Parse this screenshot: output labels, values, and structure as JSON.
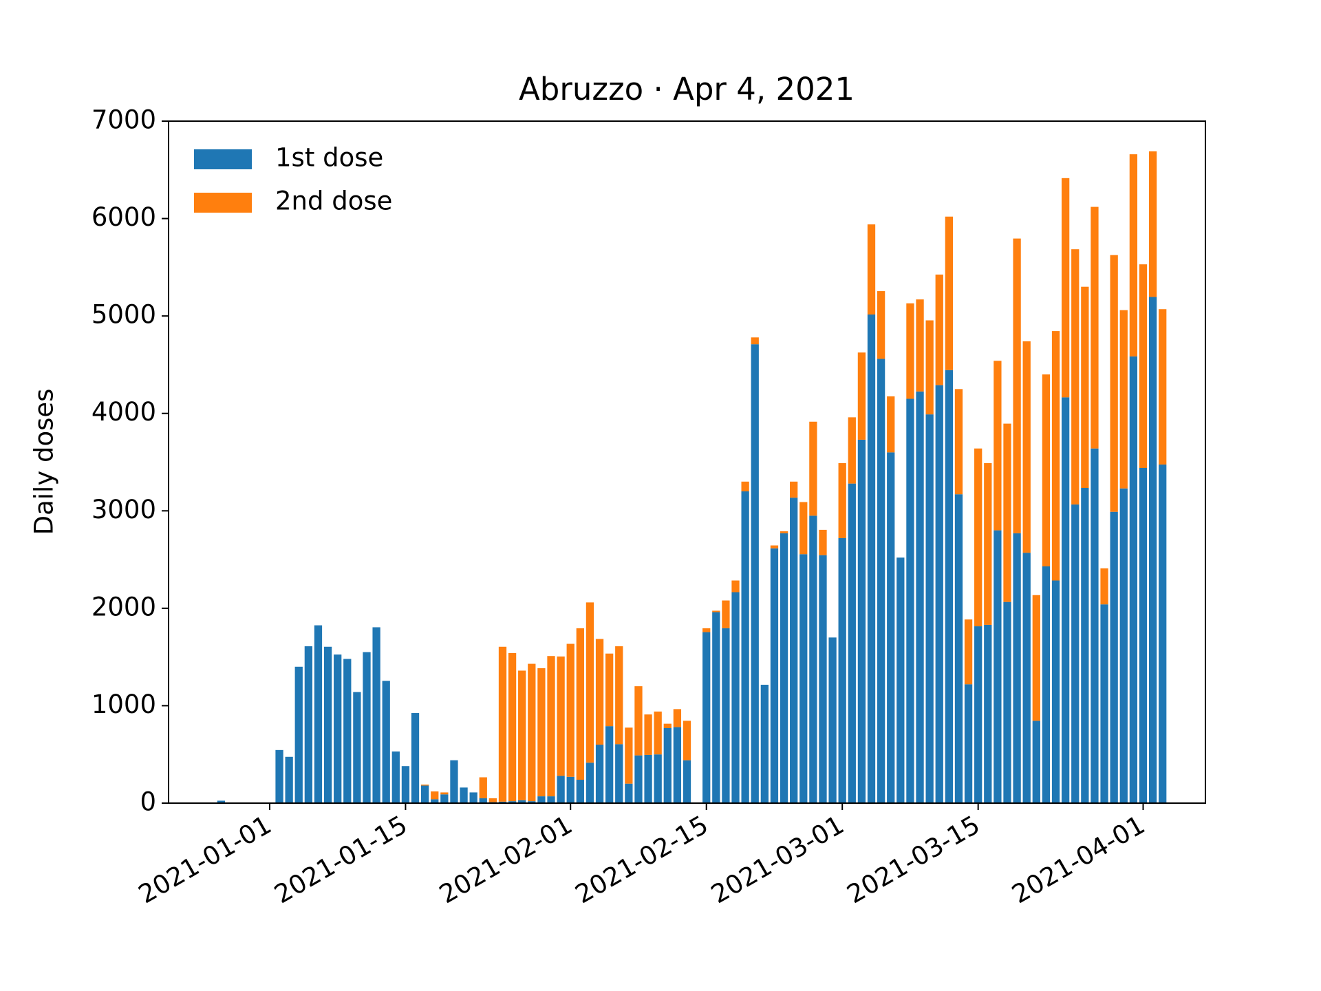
{
  "chart_data": {
    "type": "stacked_bar",
    "title": "Abruzzo · Apr 4, 2021",
    "ylabel": "Daily doses",
    "x": [
      "2020-12-27",
      "2020-12-28",
      "2020-12-29",
      "2020-12-30",
      "2020-12-31",
      "2021-01-01",
      "2021-01-02",
      "2021-01-03",
      "2021-01-04",
      "2021-01-05",
      "2021-01-06",
      "2021-01-07",
      "2021-01-08",
      "2021-01-09",
      "2021-01-10",
      "2021-01-11",
      "2021-01-12",
      "2021-01-13",
      "2021-01-14",
      "2021-01-15",
      "2021-01-16",
      "2021-01-17",
      "2021-01-18",
      "2021-01-19",
      "2021-01-20",
      "2021-01-21",
      "2021-01-22",
      "2021-01-23",
      "2021-01-24",
      "2021-01-25",
      "2021-01-26",
      "2021-01-27",
      "2021-01-28",
      "2021-01-29",
      "2021-01-30",
      "2021-01-31",
      "2021-02-01",
      "2021-02-02",
      "2021-02-03",
      "2021-02-04",
      "2021-02-05",
      "2021-02-06",
      "2021-02-07",
      "2021-02-08",
      "2021-02-09",
      "2021-02-10",
      "2021-02-11",
      "2021-02-12",
      "2021-02-13",
      "2021-02-14",
      "2021-02-15",
      "2021-02-16",
      "2021-02-17",
      "2021-02-18",
      "2021-02-19",
      "2021-02-20",
      "2021-02-21",
      "2021-02-22",
      "2021-02-23",
      "2021-02-24",
      "2021-02-25",
      "2021-02-26",
      "2021-02-27",
      "2021-02-28",
      "2021-03-01",
      "2021-03-02",
      "2021-03-03",
      "2021-03-04",
      "2021-03-05",
      "2021-03-06",
      "2021-03-07",
      "2021-03-08",
      "2021-03-09",
      "2021-03-10",
      "2021-03-11",
      "2021-03-12",
      "2021-03-13",
      "2021-03-14",
      "2021-03-15",
      "2021-03-16",
      "2021-03-17",
      "2021-03-18",
      "2021-03-19",
      "2021-03-20",
      "2021-03-21",
      "2021-03-22",
      "2021-03-23",
      "2021-03-24",
      "2021-03-25",
      "2021-03-26",
      "2021-03-27",
      "2021-03-28",
      "2021-03-29",
      "2021-03-30",
      "2021-03-31",
      "2021-04-01",
      "2021-04-02",
      "2021-04-03"
    ],
    "series": [
      {
        "name": "1st dose",
        "color": "#1f77b4",
        "values": [
          25,
          0,
          0,
          0,
          0,
          0,
          545,
          475,
          1400,
          1610,
          1825,
          1605,
          1525,
          1480,
          1140,
          1550,
          1805,
          1255,
          530,
          380,
          925,
          180,
          40,
          90,
          440,
          160,
          110,
          50,
          10,
          15,
          20,
          30,
          20,
          70,
          70,
          280,
          270,
          240,
          415,
          600,
          790,
          605,
          200,
          490,
          495,
          500,
          770,
          780,
          440,
          0,
          1755,
          1960,
          1795,
          2165,
          3200,
          4710,
          1215,
          2615,
          2770,
          3135,
          2555,
          2950,
          2545,
          1700,
          2720,
          3280,
          3730,
          5015,
          4560,
          3600,
          2520,
          4150,
          4225,
          3990,
          4290,
          4445,
          3170,
          1220,
          1815,
          1830,
          2800,
          2065,
          2770,
          2570,
          845,
          2430,
          2285,
          4165,
          3065,
          3235,
          3640,
          2040,
          2990,
          3230,
          4585,
          3440,
          5195,
          3475
        ]
      },
      {
        "name": "2nd dose",
        "color": "#ff7f0e",
        "values": [
          0,
          0,
          0,
          0,
          0,
          0,
          0,
          0,
          0,
          0,
          0,
          0,
          0,
          0,
          0,
          0,
          0,
          0,
          0,
          0,
          0,
          10,
          80,
          20,
          0,
          0,
          0,
          215,
          40,
          1590,
          1520,
          1330,
          1410,
          1315,
          1440,
          1225,
          1365,
          1555,
          1645,
          1085,
          745,
          1005,
          575,
          710,
          415,
          440,
          45,
          185,
          405,
          0,
          40,
          15,
          285,
          120,
          100,
          70,
          0,
          30,
          20,
          165,
          535,
          965,
          260,
          0,
          770,
          680,
          895,
          925,
          695,
          575,
          0,
          980,
          945,
          965,
          1135,
          1575,
          1080,
          665,
          1825,
          1660,
          1740,
          1830,
          3025,
          2170,
          1290,
          1970,
          2560,
          2250,
          2620,
          2065,
          2480,
          370,
          2635,
          1830,
          2075,
          2090,
          1495,
          1595
        ]
      }
    ],
    "xlim": [
      "2020-12-21T14:00:00Z",
      "2021-04-07T10:00:00Z"
    ],
    "xticks": [
      "2021-01-01",
      "2021-01-15",
      "2021-02-01",
      "2021-02-15",
      "2021-03-01",
      "2021-03-15",
      "2021-04-01"
    ],
    "ylim": [
      0,
      7000
    ],
    "yticks": [
      0,
      1000,
      2000,
      3000,
      4000,
      5000,
      6000,
      7000
    ],
    "legend": "upper left"
  }
}
